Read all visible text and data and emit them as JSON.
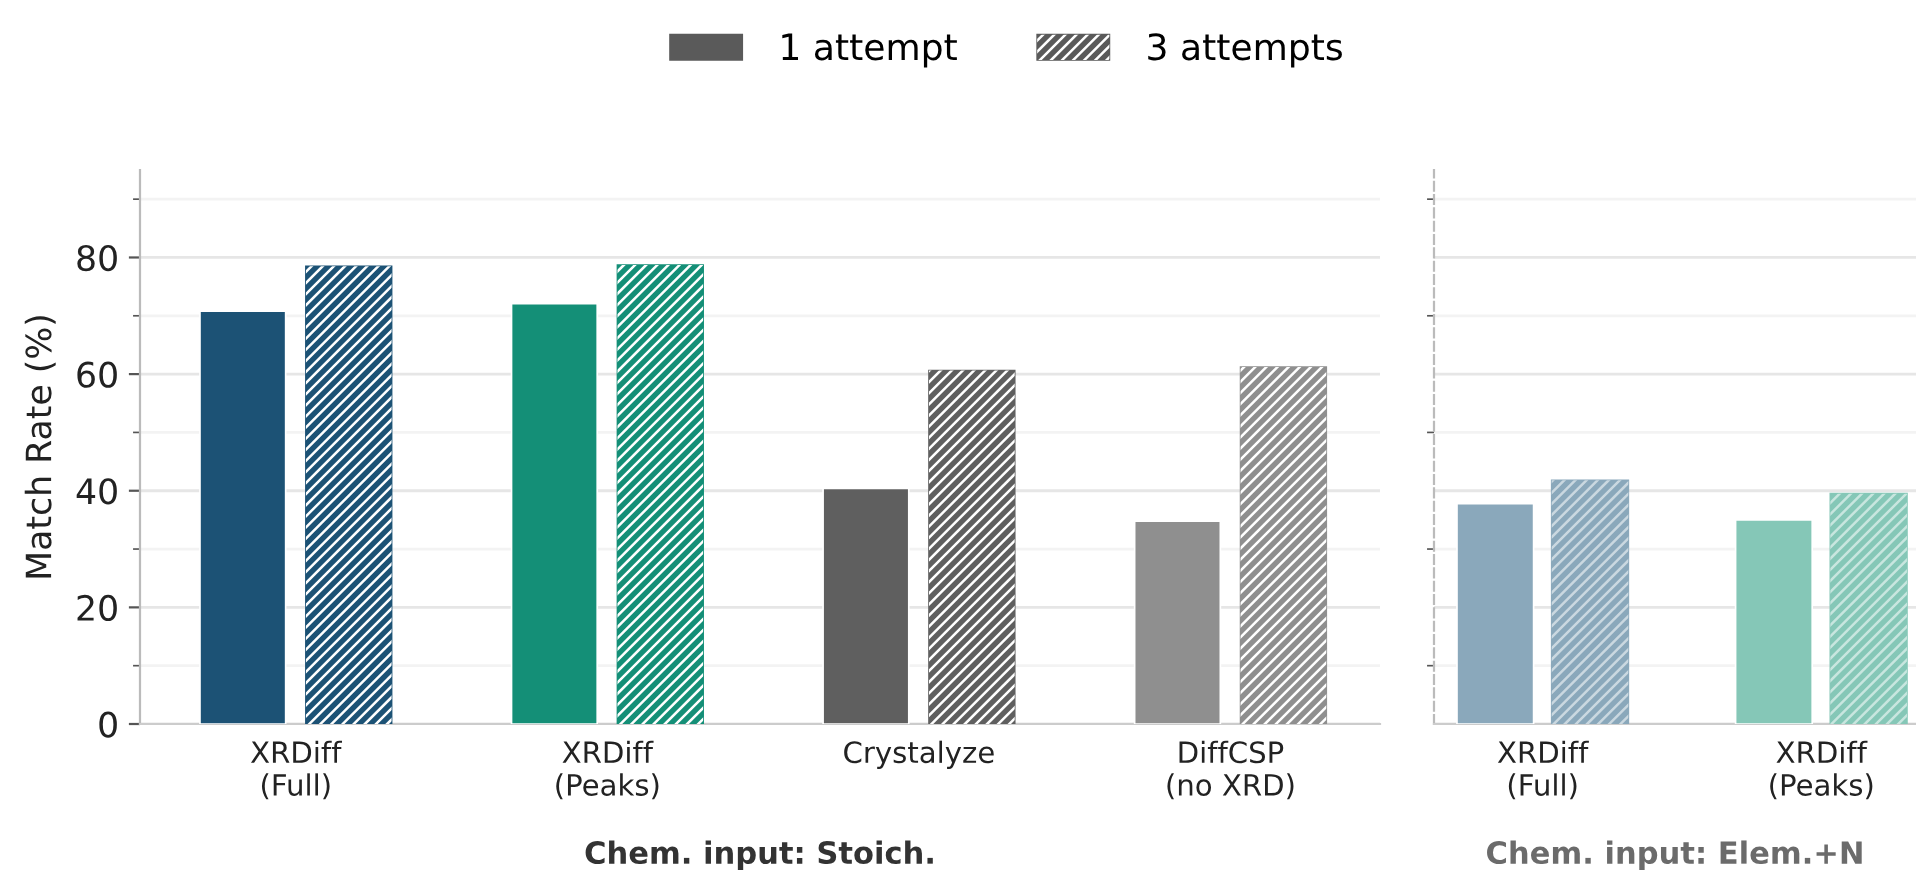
{
  "chart_data": [
    {
      "type": "bar",
      "xlabel": "Chem. input: Stoich.",
      "ylabel": "Match Rate (%)",
      "categories": [
        "XRDiff\n(Full)",
        "XRDiff\n(Peaks)",
        "Crystalyze",
        "DiffCSP\n(no XRD)"
      ],
      "series": [
        {
          "name": "1 attempt",
          "color": "#5a5a5a",
          "colors": [
            "#1c5275",
            "#148f77",
            "#5f5f5f",
            "#8f8f8f"
          ],
          "values": [
            70.8,
            72.1,
            40.4,
            34.8
          ]
        },
        {
          "name": "3 attempts",
          "color": "#5a5a5a",
          "colors": [
            "#1c5275",
            "#148f77",
            "#5f5f5f",
            "#8f8f8f"
          ],
          "values": [
            78.5,
            78.7,
            60.6,
            61.2
          ]
        }
      ],
      "ylim": [
        0,
        95
      ],
      "yticks": [
        0,
        {
          "value": 10,
          "label": null
        },
        20,
        {
          "value": 30,
          "label": null
        },
        40,
        {
          "value": 50,
          "label": null
        },
        60,
        {
          "value": 70,
          "label": null
        },
        80,
        {
          "value": 90,
          "label": null
        }
      ],
      "grid": "y",
      "legend": "top"
    },
    {
      "type": "bar",
      "xlabel": "Chem. input: Elem.+N",
      "categories": [
        "XRDiff\n(Full)",
        "XRDiff\n(Peaks)"
      ],
      "series": [
        {
          "colors": [
            "#8aa8bb",
            "#85c7b7"
          ],
          "values": [
            37.8,
            35.0
          ]
        },
        {
          "colors": [
            "#8aa8bb",
            "#85c7b7"
          ],
          "values": [
            41.8,
            39.5
          ]
        }
      ],
      "ylim": [
        0,
        95
      ],
      "yticks": [
        0,
        {
          "value": 10,
          "label": null
        },
        20,
        {
          "value": 30,
          "label": null
        },
        40,
        {
          "value": 50,
          "label": null
        },
        60,
        {
          "value": 70,
          "label": null
        },
        80,
        {
          "value": 90,
          "label": null
        }
      ],
      "grid": "y",
      "tick_labels": "x"
    }
  ]
}
